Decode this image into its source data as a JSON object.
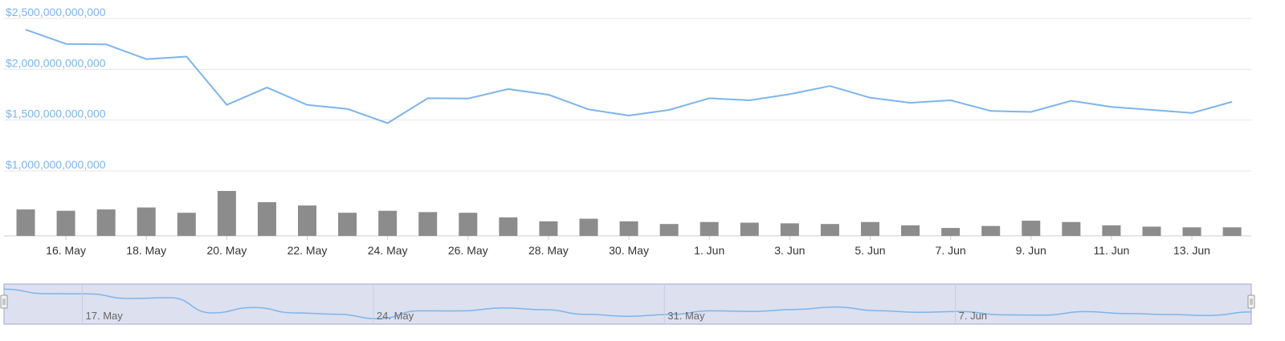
{
  "chart_data": {
    "type": "line",
    "title": "",
    "xlabel": "",
    "ylabel": "",
    "grid": true,
    "colors": {
      "price_line": "#7cb5ec",
      "volume_bar": "#8c8c8c",
      "navigator_fill": "#dde0ef",
      "navigator_outline": "#9fa8d0"
    },
    "x": [
      "15 May",
      "16 May",
      "17 May",
      "18 May",
      "19 May",
      "20 May",
      "21 May",
      "22 May",
      "23 May",
      "24 May",
      "25 May",
      "26 May",
      "27 May",
      "28 May",
      "29 May",
      "30 May",
      "31 May",
      "1 Jun",
      "2 Jun",
      "3 Jun",
      "4 Jun",
      "5 Jun",
      "6 Jun",
      "7 Jun",
      "8 Jun",
      "9 Jun",
      "10 Jun",
      "11 Jun",
      "12 Jun",
      "13 Jun",
      "14 Jun"
    ],
    "series": [
      {
        "kind": "line",
        "values": [
          2390000000000,
          2250000000000,
          2245000000000,
          2100000000000,
          2125000000000,
          1650000000000,
          1820000000000,
          1650000000000,
          1610000000000,
          1470000000000,
          1715000000000,
          1712000000000,
          1805000000000,
          1750000000000,
          1605000000000,
          1545000000000,
          1600000000000,
          1715000000000,
          1695000000000,
          1755000000000,
          1835000000000,
          1720000000000,
          1670000000000,
          1695000000000,
          1590000000000,
          1580000000000,
          1690000000000,
          1630000000000,
          1600000000000,
          1570000000000,
          1680000000000
        ]
      },
      {
        "kind": "bar",
        "values": [
          40,
          38,
          40,
          43,
          35,
          68,
          51,
          46,
          35,
          38,
          36,
          35,
          28,
          22,
          26,
          22,
          18,
          21,
          20,
          19,
          18,
          21,
          16,
          12,
          15,
          23,
          21,
          16,
          14,
          13,
          13
        ]
      }
    ],
    "y_axis": {
      "ylim": [
        1000000000000,
        2500000000000
      ],
      "tick_labels": [
        "$2,500,000,000,000",
        "$2,000,000,000,000",
        "$1,500,000,000,000",
        "$1,000,000,000,000"
      ],
      "tick_values": [
        2500000000000,
        2000000000000,
        1500000000000,
        1000000000000
      ]
    },
    "x_axis": {
      "tick_labels": [
        "16. May",
        "18. May",
        "20. May",
        "22. May",
        "24. May",
        "26. May",
        "28. May",
        "30. May",
        "1. Jun",
        "3. Jun",
        "5. Jun",
        "7. Jun",
        "9. Jun",
        "11. Jun",
        "13. Jun"
      ],
      "tick_indices": [
        1,
        3,
        5,
        7,
        9,
        11,
        13,
        15,
        17,
        19,
        21,
        23,
        25,
        27,
        29
      ]
    },
    "volume_ylim": [
      0,
      70
    ],
    "navigator": {
      "tick_labels": [
        "17. May",
        "24. May",
        "31. May",
        "7. Jun"
      ],
      "tick_indices": [
        2,
        9,
        16,
        23
      ],
      "range": [
        "15 May",
        "14 Jun"
      ]
    }
  }
}
